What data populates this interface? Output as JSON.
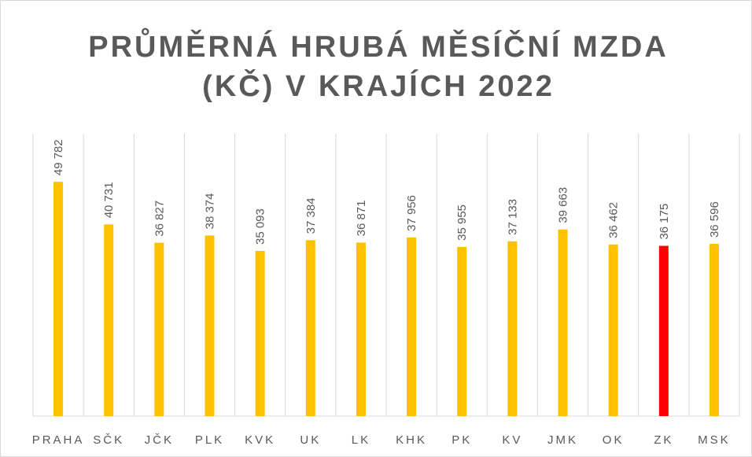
{
  "chart_data": {
    "type": "bar",
    "title": "PRŮMĚRNÁ HRUBÁ MĚSÍČNÍ MZDA (KČ) V KRAJÍCH 2022",
    "categories": [
      "PRAHA",
      "SČK",
      "JČK",
      "PLK",
      "KVK",
      "UK",
      "LK",
      "KHK",
      "PK",
      "KV",
      "JMK",
      "OK",
      "ZK",
      "MSK"
    ],
    "values": [
      49782,
      40731,
      36827,
      38374,
      35093,
      37384,
      36871,
      37956,
      35955,
      37133,
      39663,
      36462,
      36175,
      36596
    ],
    "value_labels": [
      "49 782",
      "40 731",
      "36 827",
      "38 374",
      "35 093",
      "37 384",
      "36 871",
      "37 956",
      "35 955",
      "37 133",
      "39 663",
      "36 462",
      "36 175",
      "36 596"
    ],
    "colors": [
      "#ffc000",
      "#ffc000",
      "#ffc000",
      "#ffc000",
      "#ffc000",
      "#ffc000",
      "#ffc000",
      "#ffc000",
      "#ffc000",
      "#ffc000",
      "#ffc000",
      "#ffc000",
      "#ff0000",
      "#ffc000"
    ],
    "ylim": [
      0,
      60000
    ]
  }
}
